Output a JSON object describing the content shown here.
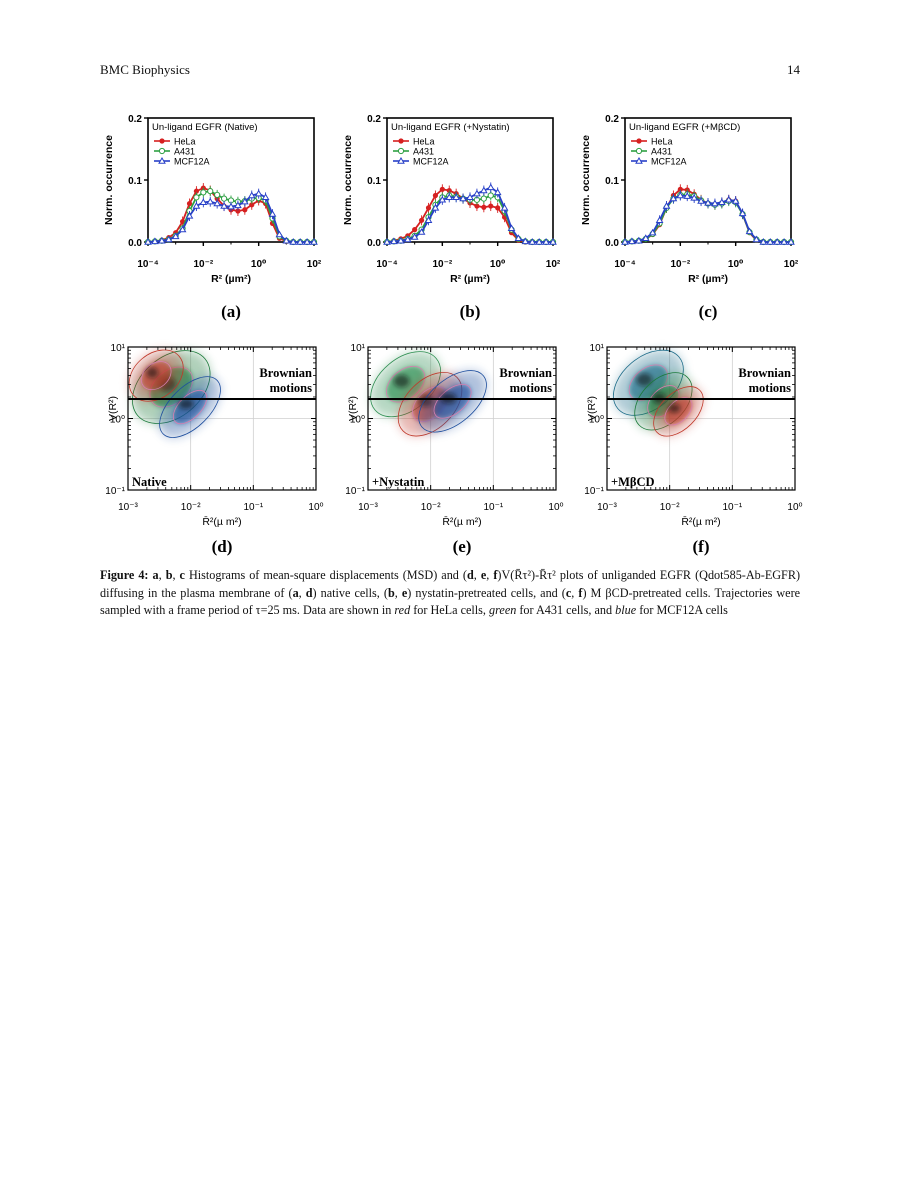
{
  "header": {
    "journal": "BMC Biophysics",
    "page_number": "14"
  },
  "colors": {
    "HeLa": "#d62020",
    "A431": "#2ea043",
    "MCF12A": "#2840c8"
  },
  "histogram_panels": [
    {
      "label": "(a)",
      "title": "Un-ligand EGFR (Native)"
    },
    {
      "label": "(b)",
      "title": "Un-ligand EGFR (+Nystatin)"
    },
    {
      "label": "(c)",
      "title": "Un-ligand EGFR (+MβCD)"
    }
  ],
  "histogram_axes": {
    "ylabel": "Norm. occurrence",
    "xlabel": "R² (µm²)",
    "yticks": [
      "0.0",
      "0.1",
      "0.2"
    ],
    "xticks": [
      "10⁻⁴",
      "10⁻²",
      "10⁰",
      "10²"
    ],
    "legend": [
      "HeLa",
      "A431",
      "MCF12A"
    ]
  },
  "contour_panels": [
    {
      "label": "(d)",
      "condition": "Native"
    },
    {
      "label": "(e)",
      "condition": "+Nystatin"
    },
    {
      "label": "(f)",
      "condition": "+MβCD"
    }
  ],
  "contour_axes": {
    "ylabel": "V(R²)",
    "xlabel": "R̄²(µ m²)",
    "yticks": [
      "10¹",
      "10⁰",
      "10⁻¹"
    ],
    "xticks": [
      "10⁻³",
      "10⁻²",
      "10⁻¹",
      "10⁰"
    ],
    "annotation_line1": "Brownian",
    "annotation_line2": "motions"
  },
  "caption": {
    "fig_label": "Figure 4:",
    "t1": " a",
    "t2": ", ",
    "t3": "b",
    "t4": ", ",
    "t5": "c",
    "t6": " Histograms of mean-square displacements (MSD) and (",
    "t7": "d",
    "t8": ", ",
    "t9": "e",
    "t10": ", ",
    "t11": "f",
    "t12": ")V(R̄τ²)-R̄τ² plots of unliganded EGFR (Qdot585-Ab-EGFR) diffusing in the plasma membrane of (",
    "t13": "a",
    "t14": ", ",
    "t15": "d",
    "t16": ") native cells, (",
    "t17": "b",
    "t18": ", ",
    "t19": "e",
    "t20": ") nystatin-pretreated cells, and (",
    "t21": "c",
    "t22": ", ",
    "t23": "f",
    "t24": ") M βCD-pretreated cells. Trajectories were sampled with a frame period of τ=25 ms. Data are shown in ",
    "red": "red",
    "t25": " for HeLa cells, ",
    "green": "green",
    "t26": " for A431 cells, and ",
    "blue": "blue",
    "t27": " for MCF12A cells"
  },
  "chart_data": [
    {
      "type": "line",
      "title": "Un-ligand EGFR (Native)",
      "xlabel": "R² (µm²)",
      "ylabel": "Norm. occurrence",
      "x_log10": [
        -4,
        -3.75,
        -3.5,
        -3.25,
        -3,
        -2.75,
        -2.5,
        -2.25,
        -2,
        -1.75,
        -1.5,
        -1.25,
        -1,
        -0.75,
        -0.5,
        -0.25,
        0,
        0.25,
        0.5,
        0.75,
        1,
        1.25,
        1.5,
        1.75,
        2
      ],
      "ylim": [
        0,
        0.2
      ],
      "xlim_log10": [
        -4,
        2
      ],
      "legend_position": "top-left",
      "series": [
        {
          "name": "HeLa",
          "values": [
            0,
            0.001,
            0.003,
            0.007,
            0.015,
            0.033,
            0.062,
            0.082,
            0.087,
            0.083,
            0.07,
            0.058,
            0.052,
            0.05,
            0.052,
            0.06,
            0.067,
            0.062,
            0.03,
            0.006,
            0.001,
            0,
            0,
            0,
            0
          ]
        },
        {
          "name": "A431",
          "values": [
            0,
            0.001,
            0.002,
            0.004,
            0.01,
            0.022,
            0.05,
            0.072,
            0.08,
            0.082,
            0.076,
            0.07,
            0.067,
            0.065,
            0.066,
            0.07,
            0.071,
            0.067,
            0.038,
            0.009,
            0.002,
            0,
            0,
            0,
            0
          ]
        },
        {
          "name": "MCF12A",
          "values": [
            0,
            0.001,
            0.002,
            0.004,
            0.009,
            0.02,
            0.042,
            0.058,
            0.064,
            0.065,
            0.062,
            0.058,
            0.057,
            0.059,
            0.065,
            0.075,
            0.078,
            0.072,
            0.045,
            0.012,
            0.002,
            0,
            0,
            0,
            0
          ]
        }
      ]
    },
    {
      "type": "line",
      "title": "Un-ligand EGFR (+Nystatin)",
      "xlabel": "R² (µm²)",
      "ylabel": "Norm. occurrence",
      "x_log10": [
        -4,
        -3.75,
        -3.5,
        -3.25,
        -3,
        -2.75,
        -2.5,
        -2.25,
        -2,
        -1.75,
        -1.5,
        -1.25,
        -1,
        -0.75,
        -0.5,
        -0.25,
        0,
        0.25,
        0.5,
        0.75,
        1,
        1.25,
        1.5,
        1.75,
        2
      ],
      "ylim": [
        0,
        0.2
      ],
      "xlim_log10": [
        -4,
        2
      ],
      "legend_position": "top-left",
      "series": [
        {
          "name": "HeLa",
          "values": [
            0,
            0.002,
            0.005,
            0.01,
            0.02,
            0.035,
            0.055,
            0.075,
            0.085,
            0.083,
            0.078,
            0.07,
            0.063,
            0.058,
            0.056,
            0.058,
            0.055,
            0.04,
            0.015,
            0.003,
            0,
            0,
            0,
            0,
            0
          ]
        },
        {
          "name": "A431",
          "values": [
            0,
            0.001,
            0.002,
            0.005,
            0.01,
            0.02,
            0.04,
            0.06,
            0.072,
            0.075,
            0.073,
            0.07,
            0.068,
            0.068,
            0.07,
            0.075,
            0.072,
            0.05,
            0.02,
            0.005,
            0.001,
            0,
            0,
            0,
            0
          ]
        },
        {
          "name": "MCF12A",
          "values": [
            0,
            0.001,
            0.002,
            0.004,
            0.008,
            0.016,
            0.035,
            0.055,
            0.068,
            0.072,
            0.072,
            0.07,
            0.072,
            0.078,
            0.083,
            0.088,
            0.08,
            0.055,
            0.022,
            0.006,
            0.001,
            0,
            0,
            0,
            0
          ]
        }
      ]
    },
    {
      "type": "line",
      "title": "Un-ligand EGFR (+MβCD)",
      "xlabel": "R² (µm²)",
      "ylabel": "Norm. occurrence",
      "x_log10": [
        -4,
        -3.75,
        -3.5,
        -3.25,
        -3,
        -2.75,
        -2.5,
        -2.25,
        -2,
        -1.75,
        -1.5,
        -1.25,
        -1,
        -0.75,
        -0.5,
        -0.25,
        0,
        0.25,
        0.5,
        0.75,
        1,
        1.25,
        1.5,
        1.75,
        2
      ],
      "ylim": [
        0,
        0.2
      ],
      "xlim_log10": [
        -4,
        2
      ],
      "legend_position": "top-left",
      "series": [
        {
          "name": "HeLa",
          "values": [
            0,
            0.001,
            0.002,
            0.005,
            0.012,
            0.028,
            0.055,
            0.075,
            0.085,
            0.084,
            0.077,
            0.068,
            0.062,
            0.06,
            0.063,
            0.068,
            0.066,
            0.045,
            0.015,
            0.003,
            0,
            0,
            0,
            0,
            0
          ]
        },
        {
          "name": "A431",
          "values": [
            0,
            0.001,
            0.002,
            0.005,
            0.013,
            0.03,
            0.055,
            0.07,
            0.076,
            0.077,
            0.074,
            0.067,
            0.062,
            0.06,
            0.062,
            0.066,
            0.064,
            0.045,
            0.016,
            0.004,
            0,
            0,
            0,
            0,
            0
          ]
        },
        {
          "name": "MCF12A",
          "values": [
            0,
            0.001,
            0.002,
            0.006,
            0.015,
            0.035,
            0.058,
            0.07,
            0.075,
            0.074,
            0.071,
            0.066,
            0.063,
            0.062,
            0.064,
            0.068,
            0.066,
            0.046,
            0.017,
            0.004,
            0,
            0,
            0,
            0,
            0
          ]
        }
      ]
    }
  ]
}
